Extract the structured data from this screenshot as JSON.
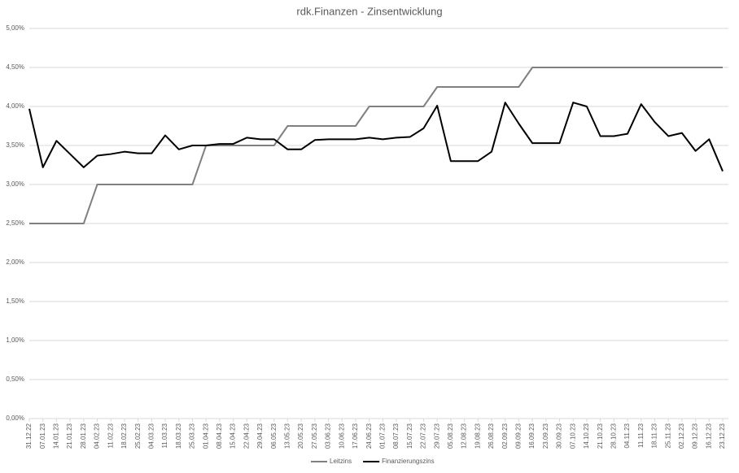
{
  "chart_data": {
    "type": "line",
    "title": "rdk.Finanzen - Zinsentwicklung",
    "categories": [
      "31.12.22",
      "07.01.23",
      "14.01.23",
      "21.01.23",
      "28.01.23",
      "04.02.23",
      "11.02.23",
      "18.02.23",
      "25.02.23",
      "04.03.23",
      "11.03.23",
      "18.03.23",
      "25.03.23",
      "01.04.23",
      "08.04.23",
      "15.04.23",
      "22.04.23",
      "29.04.23",
      "06.05.23",
      "13.05.23",
      "20.05.23",
      "27.05.23",
      "03.06.23",
      "10.06.23",
      "17.06.23",
      "24.06.23",
      "01.07.23",
      "08.07.23",
      "15.07.23",
      "22.07.23",
      "29.07.23",
      "05.08.23",
      "12.08.23",
      "19.08.23",
      "26.08.23",
      "02.09.23",
      "09.09.23",
      "16.09.23",
      "23.09.23",
      "30.09.23",
      "07.10.23",
      "14.10.23",
      "21.10.23",
      "28.10.23",
      "04.11.23",
      "11.11.23",
      "18.11.23",
      "25.11.23",
      "02.12.23",
      "09.12.23",
      "16.12.23",
      "23.12.23"
    ],
    "series": [
      {
        "name": "Leitzins",
        "color": "#808080",
        "values": [
          2.5,
          2.5,
          2.5,
          2.5,
          2.5,
          3.0,
          3.0,
          3.0,
          3.0,
          3.0,
          3.0,
          3.0,
          3.0,
          3.5,
          3.5,
          3.5,
          3.5,
          3.5,
          3.5,
          3.75,
          3.75,
          3.75,
          3.75,
          3.75,
          3.75,
          4.0,
          4.0,
          4.0,
          4.0,
          4.0,
          4.25,
          4.25,
          4.25,
          4.25,
          4.25,
          4.25,
          4.25,
          4.5,
          4.5,
          4.5,
          4.5,
          4.5,
          4.5,
          4.5,
          4.5,
          4.5,
          4.5,
          4.5,
          4.5,
          4.5,
          4.5,
          4.5
        ]
      },
      {
        "name": "Finanzierungszins",
        "color": "#000000",
        "values": [
          3.97,
          3.22,
          3.56,
          3.39,
          3.22,
          3.37,
          3.39,
          3.42,
          3.4,
          3.4,
          3.63,
          3.45,
          3.5,
          3.5,
          3.52,
          3.52,
          3.6,
          3.58,
          3.58,
          3.45,
          3.45,
          3.57,
          3.58,
          3.58,
          3.58,
          3.6,
          3.58,
          3.6,
          3.61,
          3.72,
          4.01,
          3.3,
          3.3,
          3.3,
          3.42,
          4.05,
          3.78,
          3.53,
          3.53,
          3.53,
          4.05,
          4.0,
          3.62,
          3.62,
          3.65,
          4.03,
          3.8,
          3.62,
          3.66,
          3.43,
          3.58,
          3.17
        ]
      }
    ],
    "ylim": [
      0,
      5
    ],
    "yticks": [
      {
        "value": 0,
        "label": "0,00%"
      },
      {
        "value": 0.5,
        "label": "0,50%"
      },
      {
        "value": 1,
        "label": "1,00%"
      },
      {
        "value": 1.5,
        "label": "1,50%"
      },
      {
        "value": 2,
        "label": "2,00%"
      },
      {
        "value": 2.5,
        "label": "2,50%"
      },
      {
        "value": 3,
        "label": "3,00%"
      },
      {
        "value": 3.5,
        "label": "3,50%"
      },
      {
        "value": 4,
        "label": "4,00%"
      },
      {
        "value": 4.5,
        "label": "4,50%"
      },
      {
        "value": 5,
        "label": "5,00%"
      }
    ],
    "grid": true,
    "legend": "bottom"
  }
}
